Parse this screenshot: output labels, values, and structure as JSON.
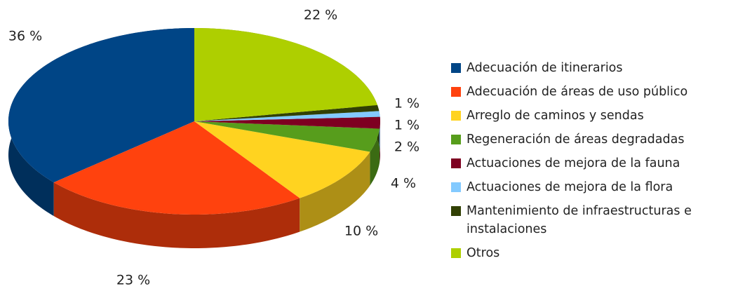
{
  "chart_data": {
    "type": "pie3d",
    "categories": [
      "Adecuación de itinerarios",
      "Adecuación de áreas de uso público",
      "Arreglo de caminos y sendas",
      "Regeneración de áreas degradadas",
      "Actuaciones de mejora de la fauna",
      "Actuaciones de mejora de la flora",
      "Mantenimiento de infraestructuras e instalaciones",
      "Otros"
    ],
    "values": [
      36,
      23,
      10,
      4,
      2,
      1,
      1,
      22
    ],
    "value_labels": [
      "36 %",
      "23 %",
      "10 %",
      "4 %",
      "2 %",
      "1 %",
      "1 %",
      "22 %"
    ],
    "colors": [
      "#004586",
      "#ff420e",
      "#ffd320",
      "#579d1c",
      "#7e0021",
      "#83caff",
      "#314004",
      "#aecf00"
    ],
    "legend": "right"
  }
}
